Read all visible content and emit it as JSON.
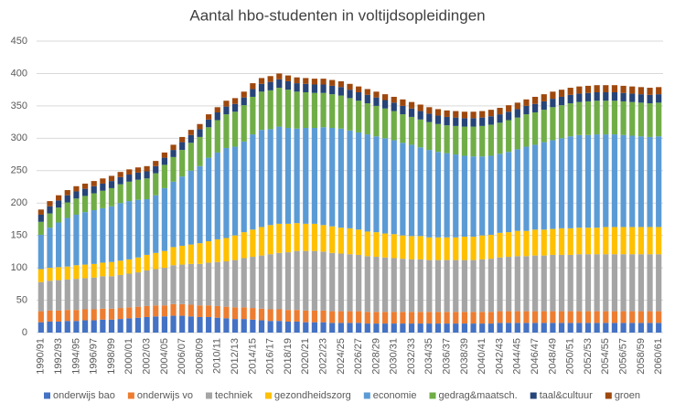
{
  "chart_data": {
    "type": "stacked-bar",
    "title": "Aantal hbo-studenten in voltijdsopleidingen",
    "categories": [
      "1990/91",
      null,
      "1992/93",
      null,
      "1994/95",
      null,
      "1996/97",
      null,
      "1998/99",
      null,
      "2000/01",
      null,
      "2002/03",
      null,
      "2004/05",
      null,
      "2006/07",
      null,
      "2008/09",
      null,
      "2010/11",
      null,
      "2012/13",
      null,
      "2014/15",
      null,
      "2016/17",
      null,
      "2018/19",
      null,
      "2020/21",
      null,
      "2022/23",
      null,
      "2024/25",
      null,
      "2026/27",
      null,
      "2028/29",
      null,
      "2030/31",
      null,
      "2032/33",
      null,
      "2034/35",
      null,
      "2036/37",
      null,
      "2038/39",
      null,
      "2040/41",
      null,
      "2042/43",
      null,
      "2044/45",
      null,
      "2046/47",
      null,
      "2048/49",
      null,
      "2050/51",
      null,
      "2052/53",
      null,
      "2054/55",
      null,
      "2056/57",
      null,
      "2058/59",
      null,
      "2060/61"
    ],
    "series": [
      {
        "name": "onderwijs bao",
        "color": "#4472c4",
        "values": [
          16,
          17,
          17,
          18,
          18,
          19,
          19,
          20,
          20,
          21,
          22,
          23,
          24,
          25,
          25,
          26,
          26,
          25,
          24,
          24,
          23,
          22,
          21,
          21,
          20,
          19,
          18,
          18,
          17,
          17,
          16,
          16,
          16,
          15,
          15,
          15,
          15,
          14,
          14,
          14,
          14,
          14,
          14,
          14,
          14,
          14,
          14,
          14,
          14,
          14,
          14,
          14,
          15,
          15,
          15,
          15,
          15,
          15,
          15,
          15,
          15,
          15,
          15,
          15,
          15,
          15,
          15,
          15,
          15,
          15,
          15
        ]
      },
      {
        "name": "onderwijs vo",
        "color": "#ed7d31",
        "values": [
          17,
          17,
          17,
          17,
          17,
          17,
          17,
          17,
          17,
          17,
          17,
          17,
          17,
          17,
          17,
          18,
          18,
          18,
          18,
          18,
          18,
          18,
          18,
          18,
          18,
          18,
          18,
          18,
          18,
          18,
          18,
          18,
          18,
          18,
          18,
          18,
          18,
          18,
          18,
          18,
          18,
          18,
          18,
          18,
          18,
          18,
          18,
          18,
          18,
          18,
          18,
          18,
          18,
          18,
          18,
          18,
          18,
          18,
          18,
          18,
          18,
          18,
          18,
          18,
          18,
          18,
          18,
          18,
          18,
          18,
          18
        ]
      },
      {
        "name": "techniek",
        "color": "#a5a5a5",
        "values": [
          45,
          46,
          47,
          47,
          48,
          48,
          49,
          50,
          50,
          51,
          52,
          53,
          55,
          56,
          58,
          60,
          61,
          63,
          64,
          66,
          68,
          70,
          73,
          76,
          79,
          82,
          85,
          87,
          89,
          91,
          92,
          92,
          91,
          90,
          89,
          88,
          87,
          86,
          85,
          84,
          83,
          82,
          81,
          81,
          80,
          80,
          80,
          80,
          80,
          80,
          81,
          82,
          83,
          84,
          85,
          85,
          86,
          86,
          87,
          87,
          87,
          88,
          88,
          88,
          88,
          88,
          88,
          88,
          88,
          88,
          88
        ]
      },
      {
        "name": "gezondheidszorg",
        "color": "#ffc000",
        "values": [
          20,
          20,
          20,
          20,
          21,
          21,
          21,
          21,
          22,
          22,
          22,
          23,
          24,
          25,
          26,
          28,
          29,
          30,
          32,
          33,
          35,
          36,
          38,
          40,
          42,
          44,
          45,
          45,
          44,
          43,
          42,
          42,
          41,
          41,
          40,
          40,
          39,
          38,
          38,
          37,
          37,
          36,
          36,
          36,
          35,
          35,
          35,
          35,
          36,
          36,
          37,
          37,
          38,
          38,
          39,
          39,
          40,
          40,
          40,
          41,
          41,
          41,
          41,
          41,
          42,
          42,
          42,
          42,
          42,
          42,
          42
        ]
      },
      {
        "name": "economie",
        "color": "#5b9bd5",
        "values": [
          53,
          62,
          69,
          75,
          78,
          81,
          83,
          84,
          86,
          89,
          90,
          89,
          86,
          89,
          97,
          101,
          107,
          114,
          119,
          129,
          134,
          139,
          137,
          140,
          147,
          150,
          148,
          150,
          148,
          146,
          148,
          148,
          151,
          152,
          153,
          151,
          150,
          150,
          148,
          147,
          145,
          143,
          141,
          137,
          135,
          132,
          130,
          128,
          125,
          124,
          122,
          122,
          122,
          124,
          126,
          130,
          131,
          135,
          137,
          139,
          142,
          143,
          143,
          144,
          143,
          143,
          142,
          141,
          140,
          139,
          140
        ]
      },
      {
        "name": "gedrag&maatsch.",
        "color": "#70ad47",
        "values": [
          20,
          22,
          23,
          24,
          25,
          25,
          26,
          27,
          28,
          29,
          30,
          31,
          32,
          34,
          36,
          38,
          41,
          43,
          45,
          47,
          50,
          52,
          54,
          56,
          58,
          59,
          60,
          60,
          59,
          57,
          55,
          54,
          53,
          52,
          51,
          50,
          49,
          48,
          47,
          46,
          45,
          44,
          43,
          43,
          43,
          43,
          43,
          44,
          45,
          46,
          47,
          48,
          48,
          49,
          49,
          50,
          50,
          50,
          51,
          51,
          51,
          51,
          52,
          52,
          52,
          52,
          52,
          52,
          52,
          52,
          52
        ]
      },
      {
        "name": "taal&cultuur",
        "color": "#264478",
        "values": [
          11,
          11,
          11,
          11,
          11,
          11,
          11,
          11,
          11,
          11,
          11,
          11,
          11,
          11,
          11,
          11,
          12,
          12,
          12,
          12,
          12,
          12,
          12,
          12,
          12,
          12,
          13,
          13,
          13,
          13,
          13,
          13,
          13,
          13,
          13,
          13,
          13,
          13,
          13,
          13,
          13,
          13,
          13,
          13,
          13,
          13,
          13,
          13,
          13,
          13,
          13,
          13,
          13,
          13,
          13,
          13,
          13,
          13,
          13,
          13,
          13,
          13,
          13,
          13,
          13,
          13,
          13,
          13,
          13,
          13,
          13
        ]
      },
      {
        "name": "groen",
        "color": "#9e480e",
        "values": [
          8,
          8,
          8,
          8,
          8,
          8,
          8,
          8,
          8,
          8,
          8,
          8,
          8,
          8,
          8,
          8,
          8,
          8,
          8,
          8,
          8,
          9,
          9,
          9,
          9,
          9,
          9,
          9,
          9,
          9,
          9,
          9,
          9,
          9,
          9,
          9,
          9,
          9,
          9,
          9,
          9,
          10,
          10,
          10,
          10,
          10,
          10,
          10,
          10,
          10,
          10,
          10,
          10,
          10,
          10,
          10,
          11,
          11,
          11,
          11,
          11,
          11,
          11,
          11,
          11,
          11,
          11,
          11,
          11,
          11,
          11
        ]
      }
    ],
    "ylim": [
      0,
      450
    ],
    "yticks": [
      0,
      50,
      100,
      150,
      200,
      250,
      300,
      350,
      400,
      450
    ],
    "grid": true,
    "legend": "bottom"
  }
}
